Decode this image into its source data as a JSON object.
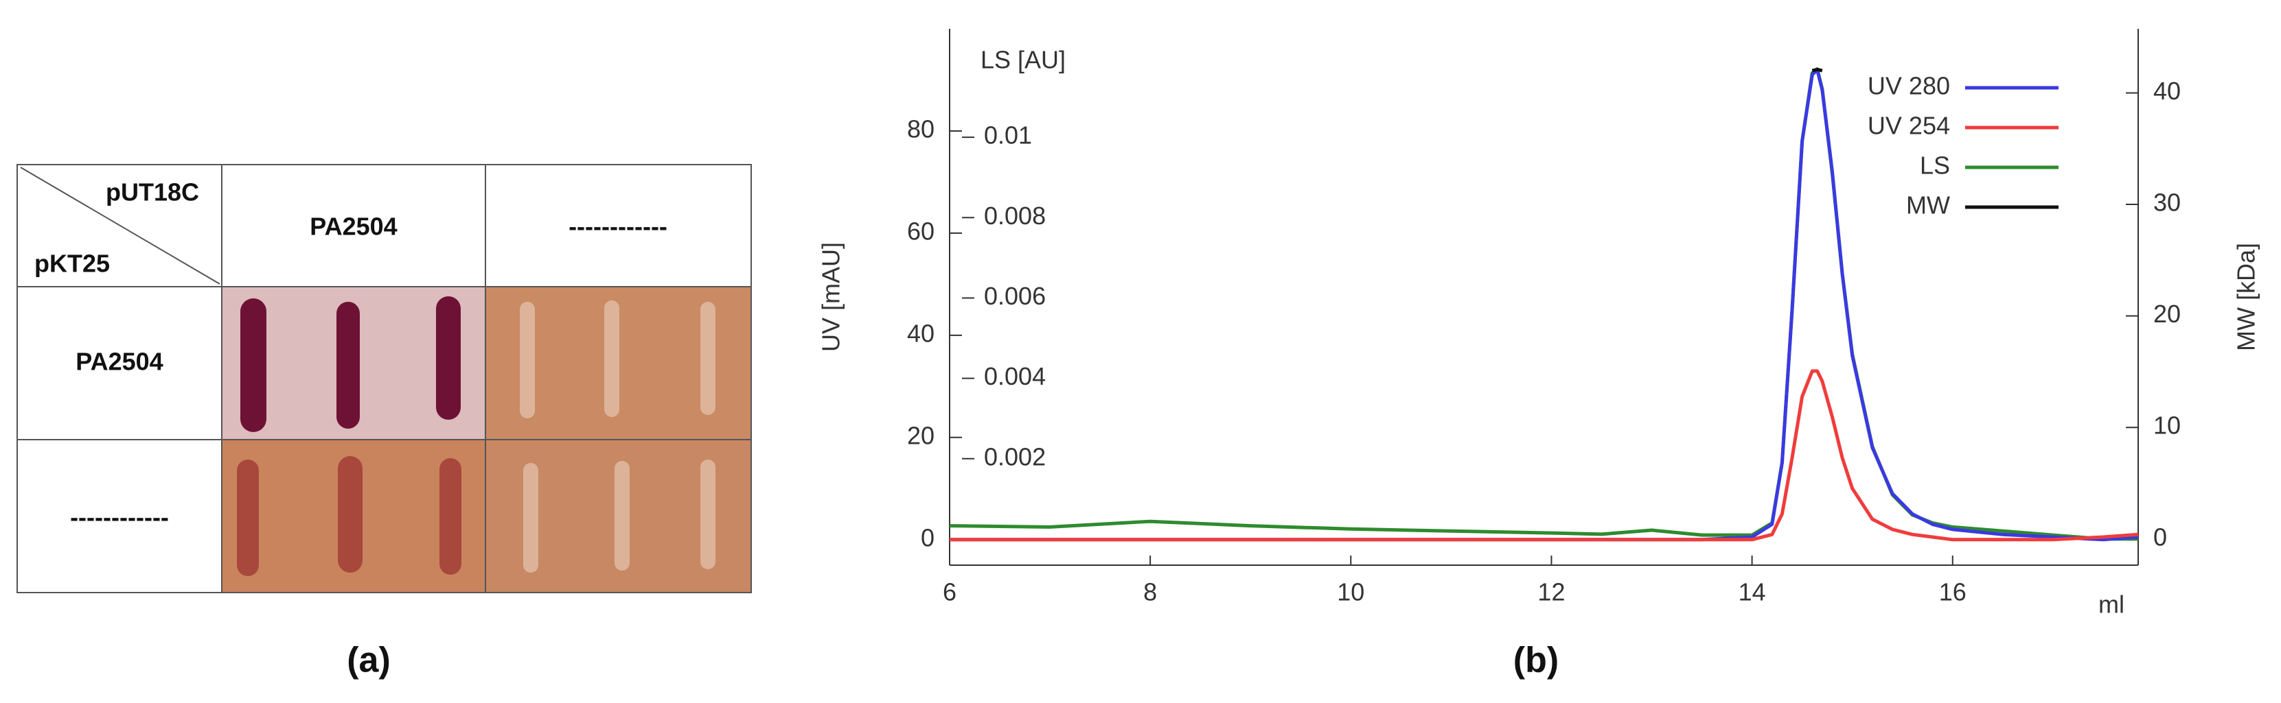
{
  "panel_a": {
    "corner_top": "pUT18C",
    "corner_bottom": "pKT25",
    "column_headers": [
      "PA2504",
      "------------"
    ],
    "row_headers": [
      "PA2504",
      "------------"
    ],
    "caption": "(a)"
  },
  "chart_data": {
    "type": "line",
    "caption": "(b)",
    "x_label": "ml",
    "y_label": "UV [mAU]",
    "y2_label": "MW [kDa]",
    "y3_label": "LS [AU]",
    "x": [
      6,
      7,
      8,
      9,
      10,
      11,
      12,
      12.5,
      13,
      13.5,
      14,
      14.2,
      14.3,
      14.4,
      14.5,
      14.6,
      14.65,
      14.7,
      14.8,
      14.9,
      15,
      15.2,
      15.4,
      15.6,
      15.8,
      16,
      16.5,
      17,
      17.5,
      17.85
    ],
    "xlim": [
      6,
      17.85
    ],
    "xticks": [
      6,
      8,
      10,
      12,
      14,
      16
    ],
    "ylim": [
      -5,
      100
    ],
    "yticks": [
      0,
      20,
      40,
      60,
      80
    ],
    "y2lim": [
      -2.35,
      45.75
    ],
    "y2ticks": [
      0,
      10,
      20,
      30,
      40
    ],
    "y3lim": [
      -0.00065,
      0.0127
    ],
    "y3ticks": [
      0.002,
      0.004,
      0.006,
      0.008,
      0.01
    ],
    "series": [
      {
        "name": "UV 280",
        "color": "#3a3ae0",
        "values": [
          0,
          0,
          0,
          0,
          0,
          0,
          0,
          0,
          0,
          0,
          0.5,
          3,
          15,
          45,
          78,
          91,
          92,
          88,
          72,
          52,
          36,
          18,
          9,
          5,
          3,
          2,
          1,
          0.5,
          0,
          0.5
        ]
      },
      {
        "name": "UV 254",
        "color": "#f03c3c",
        "values": [
          0,
          0,
          0,
          0,
          0,
          0,
          0,
          0,
          0,
          0,
          0,
          1,
          5,
          16,
          28,
          33,
          33,
          31,
          24,
          16,
          10,
          4,
          2,
          1,
          0.5,
          0,
          0,
          0,
          0.5,
          1
        ]
      },
      {
        "name": "LS",
        "color": "#2e8b2e",
        "axis": "y3",
        "values": [
          0.00033,
          0.0003,
          0.00044,
          0.00033,
          0.00025,
          0.0002,
          0.00015,
          0.00012,
          0.00022,
          0.0001,
          0.0001,
          0.0004,
          0.0019,
          0.0057,
          0.0099,
          0.0116,
          0.0117,
          0.0112,
          0.0091,
          0.0066,
          0.0046,
          0.0023,
          0.0011,
          0.0006,
          0.0004,
          0.0003,
          0.0002,
          0.0001,
          0,
          0
        ]
      },
      {
        "name": "MW",
        "color": "#111111",
        "axis": "y2",
        "x": [
          14.6,
          14.65,
          14.7
        ],
        "values": [
          42,
          42.1,
          42
        ]
      }
    ]
  }
}
